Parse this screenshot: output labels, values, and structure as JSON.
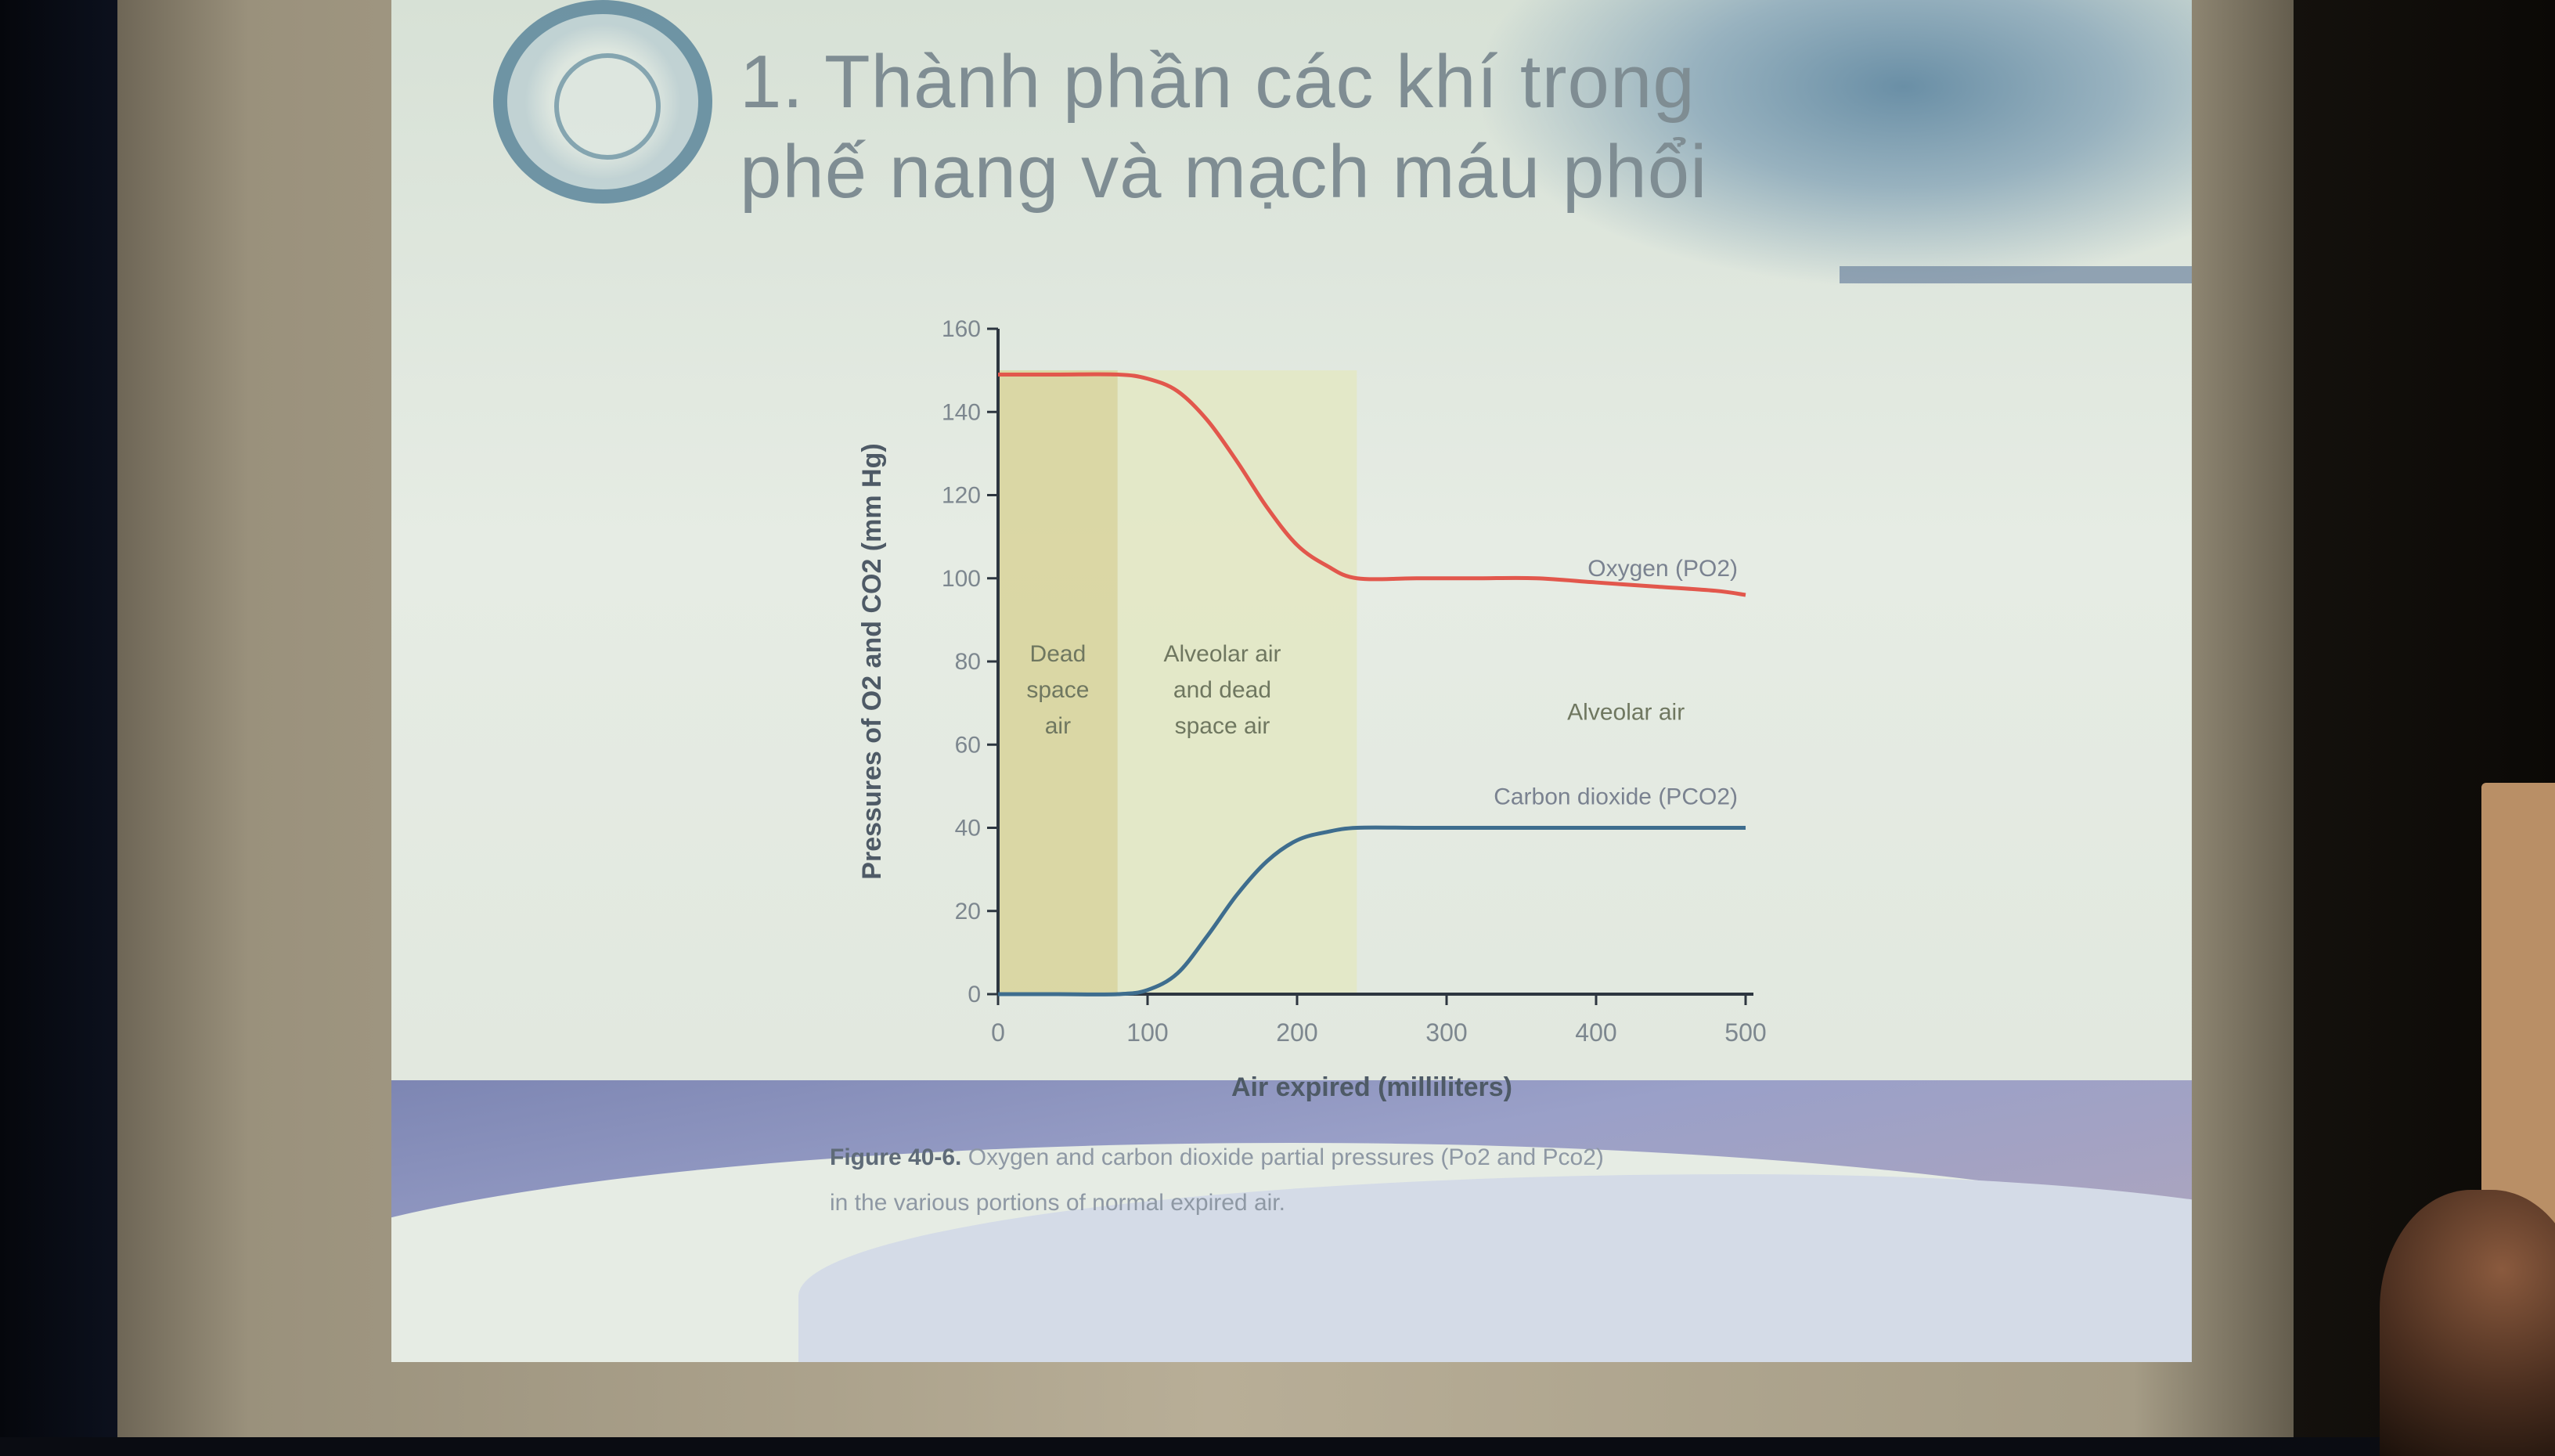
{
  "slide": {
    "title_line1": "1. Thành phần các khí trong",
    "title_line2": "phế nang và mạch máu phổi"
  },
  "caption": {
    "figure_label": "Figure 40-6.",
    "text": "Oxygen and carbon dioxide partial pressures (Po2 and Pco2) in the various portions of normal expired air."
  },
  "colors": {
    "oxygen": "#e2574c",
    "carbon_dioxide": "#3e6d8e",
    "dead_space_fill": "#d8d49a",
    "mixed_fill": "#e3e7c3",
    "axis": "#2d3640"
  },
  "chart_data": {
    "type": "line",
    "xlabel": "Air expired (milliliters)",
    "ylabel": "Pressures of O2 and CO2 (mm Hg)",
    "xlim": [
      0,
      500
    ],
    "ylim": [
      0,
      160
    ],
    "xticks": [
      0,
      100,
      200,
      300,
      400,
      500
    ],
    "yticks": [
      0,
      20,
      40,
      60,
      80,
      100,
      120,
      140,
      160
    ],
    "regions": [
      {
        "label": "Dead space air",
        "x_start": 0,
        "x_end": 80
      },
      {
        "label": "Alveolar air and dead space air",
        "x_start": 80,
        "x_end": 240
      },
      {
        "label": "Alveolar air",
        "x_start": 240,
        "x_end": 500
      }
    ],
    "series": [
      {
        "name": "Oxygen (PO2)",
        "x": [
          0,
          40,
          80,
          100,
          120,
          140,
          160,
          180,
          200,
          220,
          240,
          280,
          320,
          360,
          400,
          440,
          480,
          500
        ],
        "y": [
          149,
          149,
          149,
          148,
          145,
          138,
          128,
          117,
          108,
          103,
          100,
          100,
          100,
          100,
          99,
          98,
          97,
          96
        ]
      },
      {
        "name": "Carbon dioxide (PCO2)",
        "x": [
          0,
          40,
          80,
          100,
          120,
          140,
          160,
          180,
          200,
          220,
          240,
          280,
          320,
          360,
          400,
          440,
          480,
          500
        ],
        "y": [
          0,
          0,
          0,
          1,
          5,
          14,
          24,
          32,
          37,
          39,
          40,
          40,
          40,
          40,
          40,
          40,
          40,
          40
        ]
      }
    ]
  }
}
